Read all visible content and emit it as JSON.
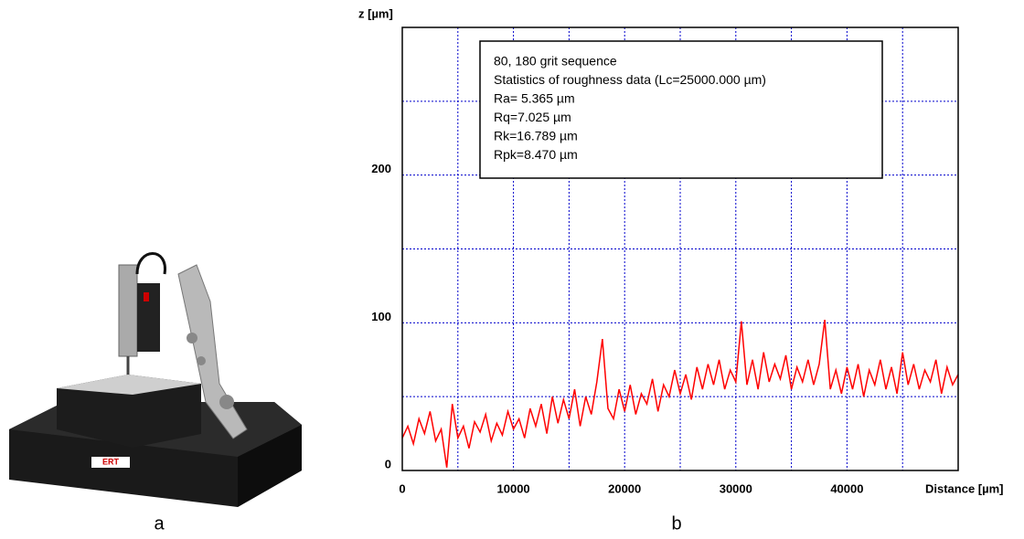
{
  "panel_labels": [
    "a",
    "b"
  ],
  "chart_data": {
    "type": "line",
    "y_label": "z [µm]",
    "x_label": "Distance [µm]",
    "annotation": [
      "80, 180 grit sequence",
      "Statistics of roughness data (Lc=25000.000 µm)",
      "Ra= 5.365 µm",
      "Rq=7.025 µm",
      "Rk=16.789 µm",
      "Rpk=8.470 µm"
    ],
    "xlim": [
      0,
      50000
    ],
    "ylim": [
      0,
      300
    ],
    "xticks": [
      0,
      10000,
      20000,
      30000,
      40000
    ],
    "yticks": [
      0,
      100,
      200
    ],
    "xgrid": [
      5000,
      10000,
      15000,
      20000,
      25000,
      30000,
      35000,
      40000,
      45000
    ],
    "ygrid": [
      50,
      100,
      150,
      200,
      250
    ],
    "grid": true,
    "x": [
      0,
      500,
      1000,
      1500,
      2000,
      2500,
      3000,
      3500,
      4000,
      4500,
      5000,
      5500,
      6000,
      6500,
      7000,
      7500,
      8000,
      8500,
      9000,
      9500,
      10000,
      10500,
      11000,
      11500,
      12000,
      12500,
      13000,
      13500,
      14000,
      14500,
      15000,
      15500,
      16000,
      16500,
      17000,
      17500,
      18000,
      18500,
      19000,
      19500,
      20000,
      20500,
      21000,
      21500,
      22000,
      22500,
      23000,
      23500,
      24000,
      24500,
      25000,
      25500,
      26000,
      26500,
      27000,
      27500,
      28000,
      28500,
      29000,
      29500,
      30000,
      30500,
      31000,
      31500,
      32000,
      32500,
      33000,
      33500,
      34000,
      34500,
      35000,
      35500,
      36000,
      36500,
      37000,
      37500,
      38000,
      38500,
      39000,
      39500,
      40000,
      40500,
      41000,
      41500,
      42000,
      42500,
      43000,
      43500,
      44000,
      44500,
      45000,
      45500,
      46000,
      46500,
      47000,
      47500,
      48000,
      48500,
      49000,
      49500,
      50000
    ],
    "series": [
      {
        "color": "#ff0000",
        "values": [
          22,
          30,
          18,
          35,
          25,
          40,
          20,
          28,
          2,
          45,
          22,
          30,
          15,
          33,
          26,
          38,
          20,
          32,
          24,
          40,
          28,
          35,
          22,
          42,
          30,
          45,
          25,
          50,
          32,
          48,
          35,
          55,
          30,
          50,
          38,
          60,
          89,
          42,
          35,
          55,
          40,
          58,
          38,
          52,
          45,
          62,
          40,
          58,
          50,
          68,
          52,
          65,
          48,
          70,
          55,
          72,
          58,
          75,
          55,
          68,
          60,
          101,
          58,
          75,
          55,
          80,
          60,
          72,
          62,
          78,
          55,
          70,
          60,
          75,
          58,
          72,
          102,
          55,
          68,
          52,
          70,
          55,
          72,
          50,
          68,
          58,
          75,
          55,
          70,
          52,
          80,
          58,
          72,
          55,
          68,
          60,
          75,
          52,
          70,
          58,
          65
        ]
      }
    ]
  }
}
